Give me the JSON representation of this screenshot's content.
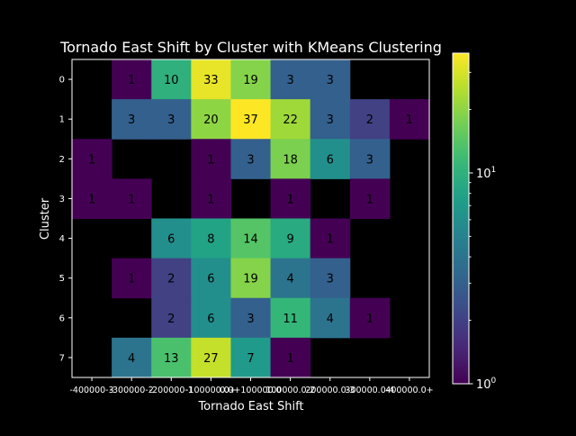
{
  "chart_data": {
    "type": "heatmap",
    "title": "Tornado East Shift by Cluster with KMeans Clustering",
    "xlabel": "Tornado East Shift",
    "ylabel": "Cluster",
    "x_tick_labels": [
      "-400000-3",
      "-300000-2",
      "-200000-1",
      "-100000.0+",
      "0.0+100000.0",
      "100000.0-2",
      "200000.0-3",
      "300000.0-4",
      "400000.0+"
    ],
    "y_tick_labels": [
      "0",
      "1",
      "2",
      "3",
      "4",
      "5",
      "6",
      "7"
    ],
    "matrix": [
      [
        null,
        1,
        10,
        33,
        19,
        3,
        3,
        null,
        null
      ],
      [
        null,
        3,
        3,
        20,
        37,
        22,
        3,
        2,
        1
      ],
      [
        1,
        null,
        null,
        1,
        3,
        18,
        6,
        3,
        null
      ],
      [
        1,
        1,
        null,
        1,
        null,
        1,
        null,
        1,
        null
      ],
      [
        null,
        null,
        6,
        8,
        14,
        9,
        1,
        null,
        null
      ],
      [
        null,
        1,
        2,
        6,
        19,
        4,
        3,
        null,
        null
      ],
      [
        null,
        null,
        2,
        6,
        3,
        11,
        4,
        1,
        null
      ],
      [
        null,
        4,
        13,
        27,
        7,
        1,
        null,
        null,
        null
      ]
    ],
    "colorbar": {
      "scale": "log",
      "colormap": "viridis",
      "vmin": 1,
      "vmax": 37,
      "tick_labels": [
        "10^0",
        "10^1"
      ]
    },
    "background": "#000000",
    "text_color": "#ffffff"
  }
}
